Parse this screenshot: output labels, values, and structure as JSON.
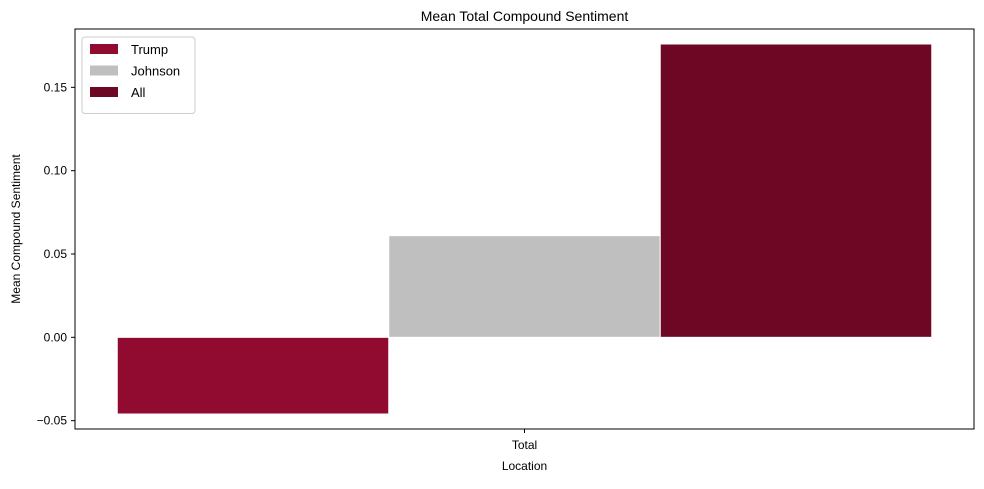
{
  "chart_data": {
    "type": "bar",
    "title": "Mean Total Compound Sentiment",
    "xlabel": "Location",
    "ylabel": "Mean Compound Sentiment",
    "categories": [
      "Total"
    ],
    "series": [
      {
        "name": "Trump",
        "values": [
          -0.046
        ],
        "color": "#910A2F"
      },
      {
        "name": "Johnson",
        "values": [
          0.061
        ],
        "color": "#BFBFBF"
      },
      {
        "name": "All",
        "values": [
          0.176
        ],
        "color": "#6D0724"
      }
    ],
    "ylim": [
      -0.055,
      0.185
    ],
    "yticks": [
      -0.05,
      0.0,
      0.05,
      0.1,
      0.15
    ],
    "ytick_labels": [
      "−0.05",
      "0.00",
      "0.05",
      "0.10",
      "0.15"
    ],
    "grid": false,
    "legend_position": "top-left"
  }
}
